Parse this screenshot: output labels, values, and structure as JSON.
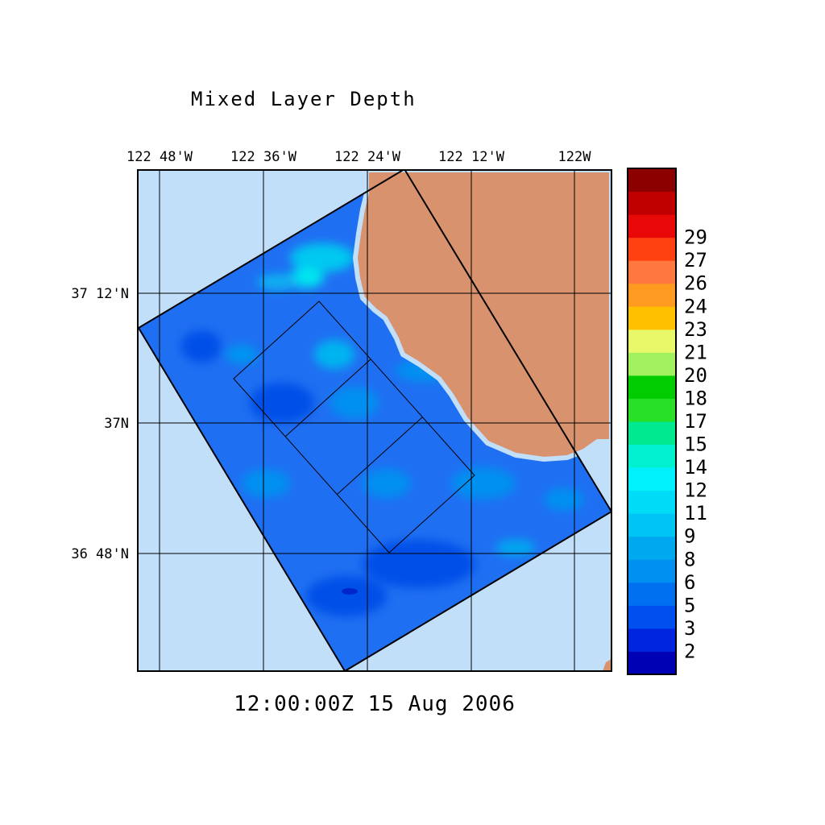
{
  "title": "Mixed Layer Depth",
  "timestamp": "12:00:00Z  15 Aug 2006",
  "lon_labels": [
    "122 48'W",
    "122 36'W",
    "122 24'W",
    "122 12'W",
    "122W"
  ],
  "lat_labels": [
    "37 12'N",
    "37N",
    "36 48'N"
  ],
  "colorbar": {
    "labels": [
      "2",
      "3",
      "5",
      "6",
      "8",
      "9",
      "11",
      "12",
      "14",
      "15",
      "17",
      "18",
      "20",
      "21",
      "23",
      "24",
      "26",
      "27",
      "29"
    ],
    "colors": [
      "#0000b4",
      "#0025e0",
      "#0050f0",
      "#0070f0",
      "#0090f0",
      "#00a8f0",
      "#00c4f4",
      "#00dcf8",
      "#00f0fc",
      "#00f0d0",
      "#00e890",
      "#28e028",
      "#00cc00",
      "#a0f060",
      "#e8f868",
      "#ffc000",
      "#ff9a20",
      "#ff7840",
      "#ff4010",
      "#e80808",
      "#c00000",
      "#8c0000"
    ]
  },
  "colors": {
    "ocean": "#c2dffa",
    "land": "#d8926e",
    "domain_fill": "#1f6ff2"
  }
}
